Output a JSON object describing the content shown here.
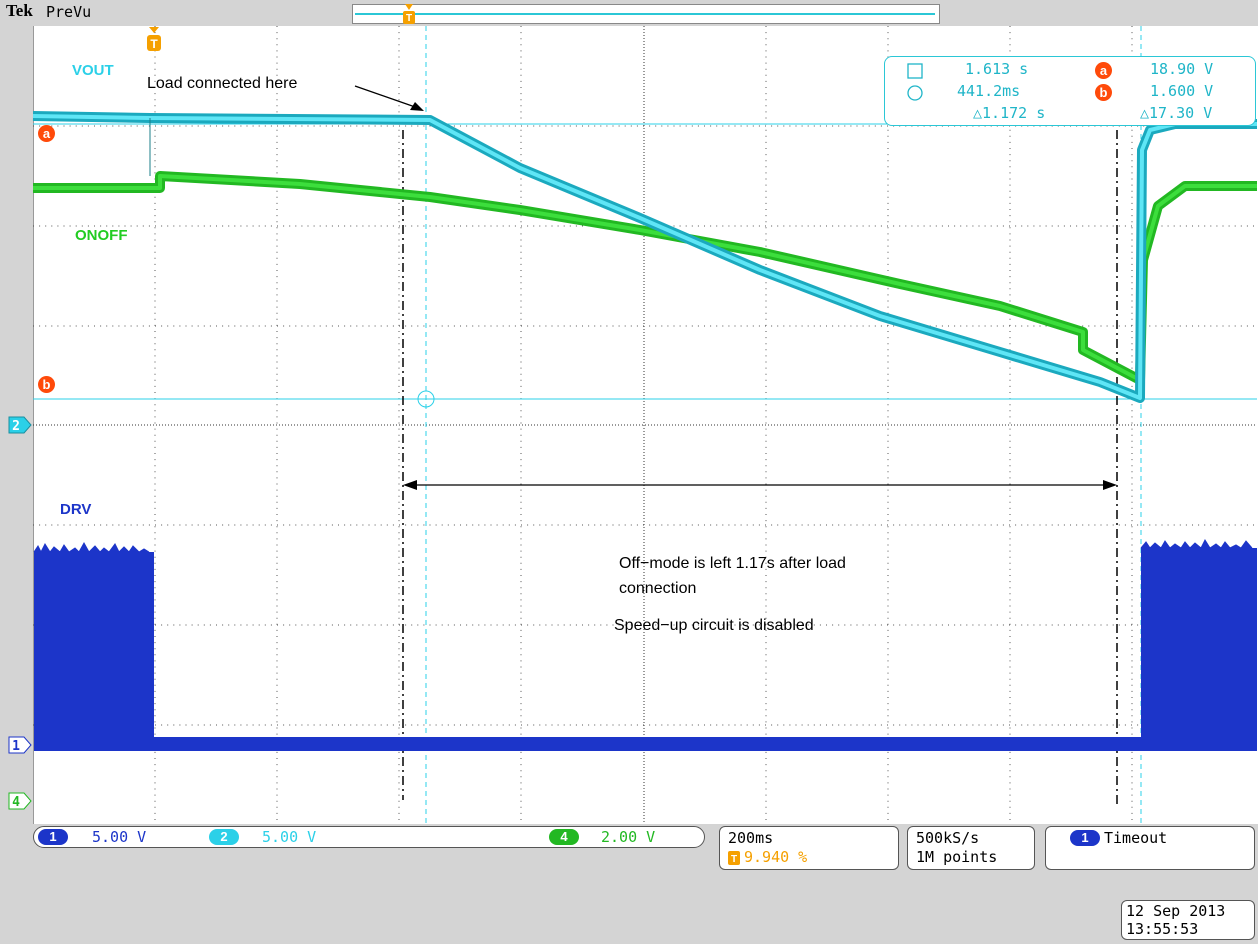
{
  "header": {
    "brand": "Tek",
    "mode": "PreVu"
  },
  "traces": {
    "vout_label": "VOUT",
    "onoff_label": "ONOFF",
    "drv_label": "DRV",
    "colors": {
      "ch1": "#1c35c9",
      "ch2": "#2bd0e8",
      "ch4": "#22cc22",
      "ref": "#ff4a0a",
      "trigger": "#f5a000"
    }
  },
  "annotations": {
    "load_note": "Load connected here",
    "offmode_line1": "Off−mode is left 1.17s after load",
    "offmode_line2": "connection",
    "speedup_note": "Speed−up circuit is disabled"
  },
  "cursors": {
    "t1": "1.613 s",
    "t2": "441.2ms",
    "dt": "△1.172 s",
    "va_badge": "a",
    "va": "18.90 V",
    "vb_badge": "b",
    "vb": "1.600 V",
    "dv": "△17.30 V"
  },
  "markers": {
    "a": "a",
    "b": "b",
    "ch1": "1",
    "ch2": "2",
    "ch4": "4",
    "trig": "T"
  },
  "channels": [
    {
      "id": "1",
      "scale": "5.00 V"
    },
    {
      "id": "2",
      "scale": "5.00 V"
    },
    {
      "id": "4",
      "scale": "2.00 V"
    }
  ],
  "timebase": {
    "scale": "200ms",
    "trig_pos": "9.940 %"
  },
  "acquisition": {
    "rate": "500kS/s",
    "length": "1M points"
  },
  "trigger": {
    "source": "1",
    "status": "Timeout"
  },
  "datetime": {
    "date": "12 Sep  2013",
    "time": "13:55:53"
  }
}
